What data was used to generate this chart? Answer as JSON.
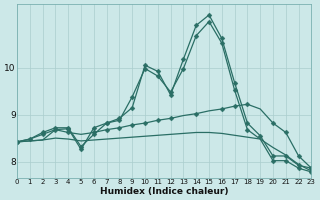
{
  "xlabel": "Humidex (Indice chaleur)",
  "bg_color": "#cce8e8",
  "line_color": "#2a6e65",
  "grid_color": "#aacece",
  "xlim": [
    0,
    23
  ],
  "ylim": [
    7.65,
    11.35
  ],
  "yticks": [
    8,
    9,
    10
  ],
  "xticks": [
    0,
    1,
    2,
    3,
    4,
    5,
    6,
    7,
    8,
    9,
    10,
    11,
    12,
    13,
    14,
    15,
    16,
    17,
    18,
    19,
    20,
    21,
    22,
    23
  ],
  "series": [
    {
      "y": [
        8.42,
        8.48,
        8.62,
        8.72,
        8.72,
        8.32,
        8.58,
        8.82,
        8.92,
        9.15,
        10.05,
        9.92,
        9.42,
        10.18,
        10.9,
        11.12,
        10.62,
        9.68,
        8.82,
        8.55,
        8.12,
        8.12,
        7.92,
        7.86
      ],
      "marker": "D",
      "ms": 2.5,
      "lw": 0.9,
      "ls": "-",
      "markevery": [
        0,
        1,
        2,
        3,
        4,
        5,
        6,
        7,
        8,
        9,
        10,
        11,
        12,
        13,
        14,
        15,
        16,
        17,
        18,
        19,
        20,
        21,
        22,
        23
      ]
    },
    {
      "y": [
        8.42,
        8.48,
        8.58,
        8.68,
        8.62,
        8.58,
        8.62,
        8.68,
        8.72,
        8.78,
        8.82,
        8.88,
        8.92,
        8.98,
        9.02,
        9.08,
        9.12,
        9.18,
        9.22,
        9.12,
        8.82,
        8.62,
        8.12,
        7.86
      ],
      "marker": "D",
      "ms": 2.5,
      "lw": 0.9,
      "ls": "-",
      "markevery": [
        0,
        2,
        4,
        6,
        7,
        8,
        9,
        10,
        11,
        12,
        14,
        16,
        17,
        18,
        20,
        21,
        22,
        23
      ]
    },
    {
      "y": [
        8.42,
        8.44,
        8.46,
        8.5,
        8.48,
        8.44,
        8.46,
        8.48,
        8.5,
        8.52,
        8.54,
        8.56,
        8.58,
        8.6,
        8.62,
        8.62,
        8.6,
        8.56,
        8.52,
        8.48,
        8.3,
        8.14,
        7.94,
        7.8
      ],
      "marker": null,
      "ms": 0,
      "lw": 0.9,
      "ls": "-",
      "markevery": []
    },
    {
      "y": [
        8.42,
        8.44,
        8.46,
        8.68,
        8.7,
        8.26,
        8.72,
        8.82,
        8.88,
        9.38,
        9.98,
        9.82,
        9.48,
        9.98,
        10.68,
        10.98,
        10.52,
        9.52,
        8.68,
        8.48,
        8.02,
        8.02,
        7.86,
        7.78
      ],
      "marker": "D",
      "ms": 2.5,
      "lw": 0.9,
      "ls": "-",
      "markevery": [
        0,
        3,
        4,
        5,
        6,
        7,
        8,
        9,
        10,
        11,
        12,
        13,
        14,
        15,
        16,
        17,
        18,
        20,
        21,
        22,
        23
      ]
    }
  ]
}
